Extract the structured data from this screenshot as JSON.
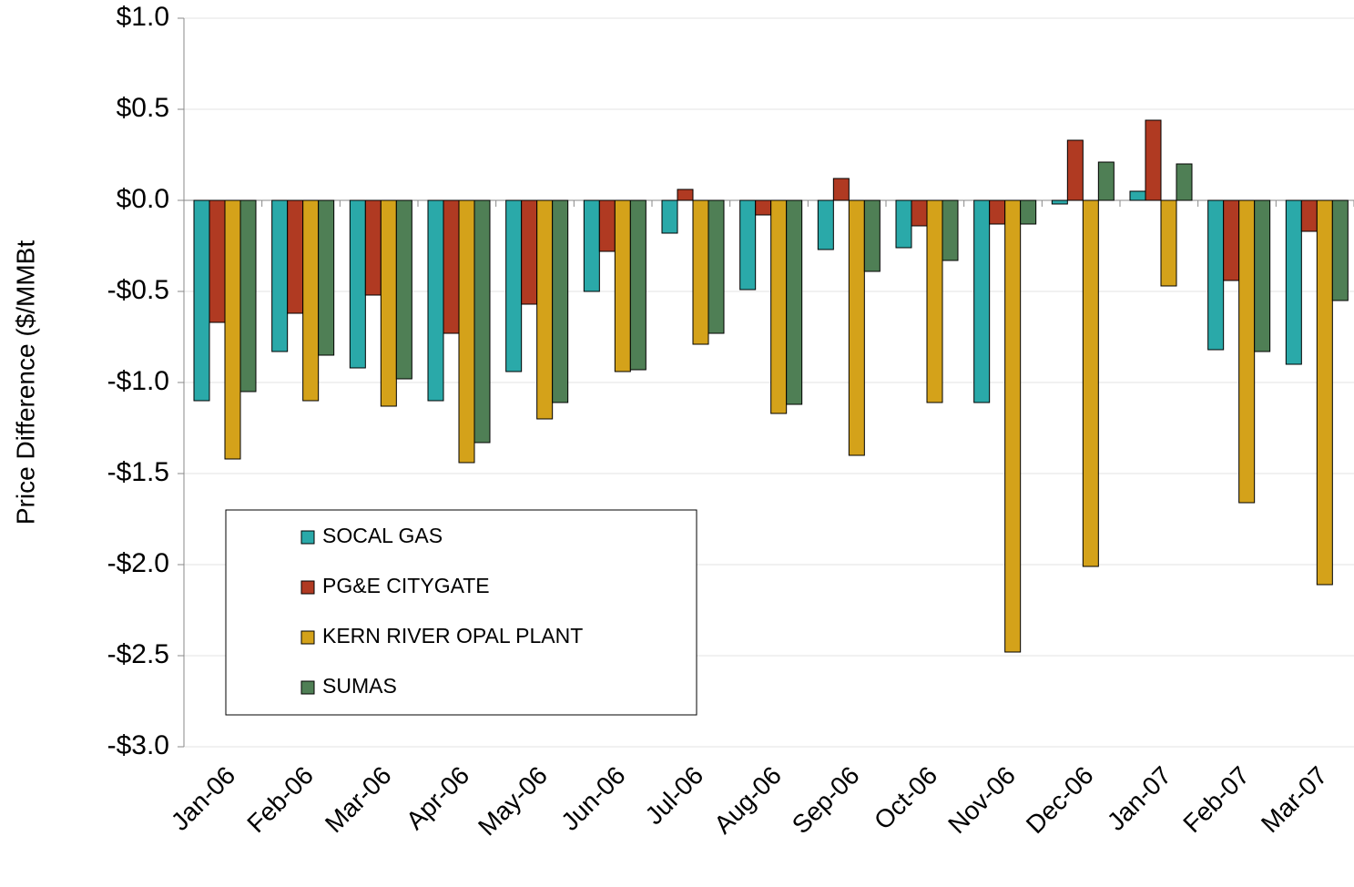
{
  "chart_data": {
    "type": "bar",
    "y_label": "Price Difference ($/MMBt",
    "categories": [
      "Jan-06",
      "Feb-06",
      "Mar-06",
      "Apr-06",
      "May-06",
      "Jun-06",
      "Jul-06",
      "Aug-06",
      "Sep-06",
      "Oct-06",
      "Nov-06",
      "Dec-06",
      "Jan-07",
      "Feb-07",
      "Mar-07"
    ],
    "series": [
      {
        "name": "SOCAL GAS",
        "color": "#2aa9a9",
        "values": [
          -1.1,
          -0.83,
          -0.92,
          -1.1,
          -0.94,
          -0.5,
          -0.18,
          -0.49,
          -0.27,
          -0.26,
          -1.11,
          -0.02,
          0.05,
          -0.82,
          -0.9
        ]
      },
      {
        "name": "PG&E CITYGATE",
        "color": "#b03a22",
        "values": [
          -0.67,
          -0.62,
          -0.52,
          -0.73,
          -0.57,
          -0.28,
          0.06,
          -0.08,
          0.12,
          -0.14,
          -0.13,
          0.33,
          0.44,
          -0.44,
          -0.17
        ]
      },
      {
        "name": "KERN RIVER OPAL PLANT",
        "color": "#d4a21a",
        "values": [
          -1.42,
          -1.1,
          -1.13,
          -1.44,
          -1.2,
          -0.94,
          -0.79,
          -1.17,
          -1.4,
          -1.11,
          -2.48,
          -2.01,
          -0.47,
          -1.66,
          -2.11
        ]
      },
      {
        "name": "SUMAS",
        "color": "#4f7f55",
        "values": [
          -1.05,
          -0.85,
          -0.98,
          -1.33,
          -1.11,
          -0.93,
          -0.73,
          -1.12,
          -0.39,
          -0.33,
          -0.13,
          0.21,
          0.2,
          -0.83,
          -0.55
        ]
      }
    ],
    "ylim": [
      -3.0,
      1.0
    ],
    "yticks": [
      {
        "value": -3.0,
        "label": "-$3.0"
      },
      {
        "value": -2.5,
        "label": "-$2.5"
      },
      {
        "value": -2.0,
        "label": "-$2.0"
      },
      {
        "value": -1.5,
        "label": "-$1.5"
      },
      {
        "value": -1.0,
        "label": "-$1.0"
      },
      {
        "value": -0.5,
        "label": "-$0.5"
      },
      {
        "value": 0.0,
        "label": "$0.0"
      },
      {
        "value": 0.5,
        "label": "$0.5"
      },
      {
        "value": 1.0,
        "label": "$1.0"
      }
    ],
    "grid": true
  }
}
